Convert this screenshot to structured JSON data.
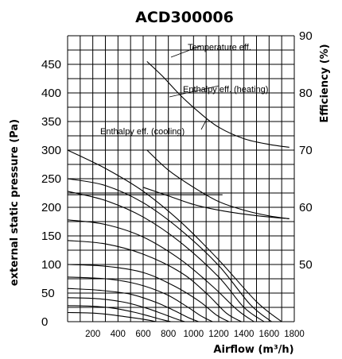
{
  "chart_data": {
    "type": "line",
    "title": "ACD300006",
    "xlabel": "Airflow (m³/h)",
    "ylabel": "external static pressure (Pa)",
    "y2label": "Efficiency (%)",
    "xlim": [
      0,
      1800
    ],
    "ylim": [
      0,
      500
    ],
    "y2lim": [
      40,
      90
    ],
    "grid": true,
    "x_ticks": [
      "200",
      "400",
      "600",
      "800",
      "1000",
      "1200",
      "1400",
      "1600",
      "1800"
    ],
    "y_ticks": [
      "0",
      "50",
      "100",
      "150",
      "200",
      "250",
      "300",
      "350",
      "400",
      "450"
    ],
    "y2_ticks": [
      "50",
      "60",
      "70",
      "80",
      "90"
    ],
    "pressure_series": [
      {
        "x": [
          0,
          300,
          600,
          900,
          1200,
          1500,
          1700
        ],
        "y": [
          300,
          268,
          228,
          174,
          108,
          35,
          0
        ]
      },
      {
        "x": [
          0,
          300,
          600,
          900,
          1200,
          1450,
          1620
        ],
        "y": [
          250,
          238,
          208,
          160,
          98,
          30,
          0
        ]
      },
      {
        "x": [
          0,
          300,
          600,
          900,
          1200,
          1400,
          1560
        ],
        "y": [
          228,
          212,
          183,
          138,
          78,
          25,
          0
        ]
      },
      {
        "x": [
          0,
          300,
          600,
          900,
          1150,
          1350,
          1480
        ],
        "y": [
          178,
          170,
          148,
          108,
          62,
          20,
          0
        ]
      },
      {
        "x": [
          0,
          300,
          600,
          900,
          1100,
          1260,
          1380
        ],
        "y": [
          142,
          136,
          118,
          86,
          50,
          15,
          0
        ]
      },
      {
        "x": [
          0,
          300,
          600,
          850,
          1050,
          1180,
          1280
        ],
        "y": [
          100,
          97,
          86,
          62,
          35,
          12,
          0
        ]
      },
      {
        "x": [
          0,
          300,
          550,
          780,
          950,
          1060,
          1150
        ],
        "y": [
          78,
          75,
          66,
          48,
          26,
          10,
          0
        ]
      },
      {
        "x": [
          0,
          250,
          500,
          700,
          850,
          960,
          1040
        ],
        "y": [
          58,
          55,
          48,
          34,
          19,
          7,
          0
        ]
      },
      {
        "x": [
          0,
          250,
          450,
          620,
          750,
          860,
          930
        ],
        "y": [
          42,
          40,
          34,
          24,
          14,
          5,
          0
        ]
      },
      {
        "x": [
          0,
          200,
          380,
          540,
          660,
          760,
          820
        ],
        "y": [
          28,
          27,
          23,
          16,
          9,
          3,
          0
        ]
      },
      {
        "x": [
          0,
          200,
          350,
          480,
          580,
          660,
          700
        ],
        "y": [
          16,
          15,
          12,
          8,
          5,
          2,
          0
        ]
      }
    ],
    "reference_lines": [
      {
        "x": [
          0,
          1230
        ],
        "y": [
          300,
          300
        ]
      },
      {
        "x": [
          0,
          1230
        ],
        "y": [
          222,
          222
        ]
      }
    ],
    "efficiency_series": [
      {
        "name": "Temperature eff.",
        "x": [
          630,
          750,
          900,
          1050,
          1200,
          1400,
          1600,
          1760
        ],
        "y": [
          85.5,
          83,
          79.5,
          76.5,
          74,
          72,
          71,
          70.5
        ]
      },
      {
        "name": "Enthalpy eff. (heating)",
        "x": [
          630,
          800,
          1000,
          1200,
          1400,
          1600,
          1760
        ],
        "y": [
          70,
          66.5,
          63.5,
          61,
          59.5,
          58.5,
          58
        ]
      },
      {
        "name": "Enthalpy eff. (cooling)",
        "x": [
          600,
          800,
          1000,
          1200,
          1400,
          1600,
          1760
        ],
        "y": [
          63.5,
          62,
          60.5,
          59.5,
          58.8,
          58.3,
          58
        ]
      }
    ]
  }
}
